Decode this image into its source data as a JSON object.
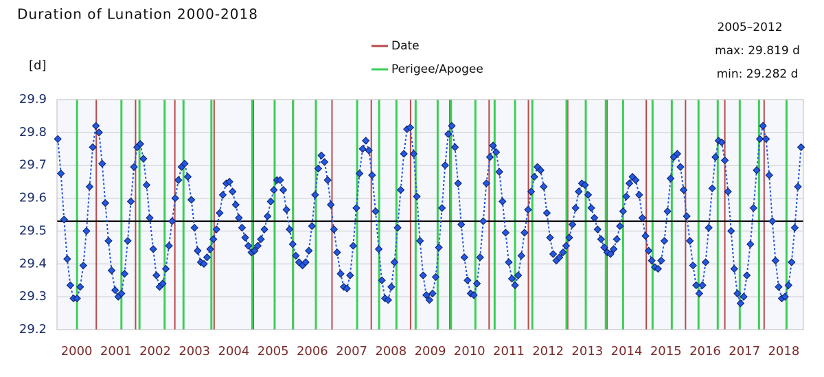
{
  "chart_data": {
    "type": "line",
    "title": "Duration of Lunation 2000-2018",
    "y_label": "[d]",
    "annotations": [
      "2005–2012",
      "max: 29.819 d",
      "min: 29.282 d"
    ],
    "xlim": [
      2000,
      2019
    ],
    "ylim": [
      29.2,
      29.9
    ],
    "yticks": [
      29.2,
      29.3,
      29.4,
      29.5,
      29.6,
      29.7,
      29.8,
      29.9
    ],
    "grid": true,
    "xticks": [
      {
        "value": 2000.5,
        "label": "2000"
      },
      {
        "value": 2001.5,
        "label": "2001"
      },
      {
        "value": 2002.5,
        "label": "2002"
      },
      {
        "value": 2003.5,
        "label": "2003"
      },
      {
        "value": 2004.5,
        "label": "2004"
      },
      {
        "value": 2005.5,
        "label": "2005"
      },
      {
        "value": 2006.5,
        "label": "2006"
      },
      {
        "value": 2007.5,
        "label": "2007"
      },
      {
        "value": 2008.5,
        "label": "2008"
      },
      {
        "value": 2009.5,
        "label": "2009"
      },
      {
        "value": 2010.5,
        "label": "2010"
      },
      {
        "value": 2011.5,
        "label": "2011"
      },
      {
        "value": 2012.5,
        "label": "2012"
      },
      {
        "value": 2013.5,
        "label": "2013"
      },
      {
        "value": 2014.5,
        "label": "2014"
      },
      {
        "value": 2015.5,
        "label": "2015"
      },
      {
        "value": 2016.5,
        "label": "2016"
      },
      {
        "value": 2017.5,
        "label": "2017"
      },
      {
        "value": 2018.5,
        "label": "2018"
      }
    ],
    "reference_line": {
      "value": 29.53,
      "color": "#000000"
    },
    "vlines": [
      {
        "name": "Date",
        "color": "#b84a4a",
        "x": [
          2001,
          2002,
          2003,
          2004,
          2005,
          2006,
          2007,
          2008,
          2009,
          2010,
          2011,
          2012,
          2013,
          2014,
          2015,
          2016,
          2017,
          2018
        ]
      },
      {
        "name": "Perigee/Apogee",
        "color": "#3ccf55",
        "x": [
          2000.51,
          2001.64,
          2002.1,
          2002.74,
          2003.22,
          2003.93,
          2004.97,
          2005.54,
          2006.01,
          2006.59,
          2007.64,
          2008.2,
          2008.64,
          2009.13,
          2009.69,
          2010.03,
          2010.65,
          2011.14,
          2011.66,
          2012.1,
          2012.97,
          2013.46,
          2013.97,
          2014.41,
          2015.16,
          2015.65,
          2016.33,
          2016.82,
          2017.38,
          2017.87,
          2018.57
        ]
      }
    ],
    "x": [
      2000.02,
      2000.1,
      2000.18,
      2000.26,
      2000.34,
      2000.42,
      2000.51,
      2000.59,
      2000.67,
      2000.75,
      2000.83,
      2000.91,
      2000.99,
      2001.07,
      2001.15,
      2001.23,
      2001.31,
      2001.39,
      2001.48,
      2001.56,
      2001.64,
      2001.72,
      2001.8,
      2001.88,
      2001.96,
      2002.04,
      2002.12,
      2002.2,
      2002.28,
      2002.36,
      2002.45,
      2002.53,
      2002.61,
      2002.69,
      2002.77,
      2002.85,
      2002.93,
      2003.01,
      2003.09,
      2003.17,
      2003.25,
      2003.33,
      2003.42,
      2003.5,
      2003.58,
      2003.66,
      2003.74,
      2003.82,
      2003.9,
      2003.98,
      2004.06,
      2004.14,
      2004.22,
      2004.31,
      2004.39,
      2004.47,
      2004.55,
      2004.63,
      2004.71,
      2004.79,
      2004.87,
      2004.95,
      2005.03,
      2005.11,
      2005.19,
      2005.28,
      2005.36,
      2005.44,
      2005.52,
      2005.6,
      2005.68,
      2005.76,
      2005.84,
      2005.92,
      2006.0,
      2006.08,
      2006.16,
      2006.25,
      2006.33,
      2006.41,
      2006.49,
      2006.57,
      2006.65,
      2006.73,
      2006.81,
      2006.89,
      2006.97,
      2007.05,
      2007.13,
      2007.22,
      2007.3,
      2007.38,
      2007.46,
      2007.54,
      2007.62,
      2007.7,
      2007.78,
      2007.86,
      2007.94,
      2008.02,
      2008.11,
      2008.19,
      2008.27,
      2008.35,
      2008.43,
      2008.51,
      2008.59,
      2008.67,
      2008.75,
      2008.83,
      2008.91,
      2008.99,
      2009.08,
      2009.16,
      2009.24,
      2009.32,
      2009.4,
      2009.48,
      2009.56,
      2009.64,
      2009.72,
      2009.8,
      2009.88,
      2009.96,
      2010.05,
      2010.13,
      2010.21,
      2010.29,
      2010.37,
      2010.45,
      2010.53,
      2010.61,
      2010.69,
      2010.77,
      2010.85,
      2010.93,
      2011.02,
      2011.1,
      2011.18,
      2011.26,
      2011.34,
      2011.42,
      2011.5,
      2011.58,
      2011.66,
      2011.74,
      2011.82,
      2011.9,
      2011.99,
      2012.07,
      2012.15,
      2012.23,
      2012.31,
      2012.39,
      2012.47,
      2012.55,
      2012.63,
      2012.71,
      2012.79,
      2012.88,
      2012.96,
      2013.04,
      2013.12,
      2013.2,
      2013.28,
      2013.36,
      2013.44,
      2013.52,
      2013.6,
      2013.68,
      2013.76,
      2013.85,
      2013.93,
      2014.01,
      2014.09,
      2014.17,
      2014.25,
      2014.33,
      2014.41,
      2014.49,
      2014.57,
      2014.65,
      2014.73,
      2014.82,
      2014.9,
      2014.98,
      2015.06,
      2015.14,
      2015.22,
      2015.3,
      2015.38,
      2015.46,
      2015.54,
      2015.62,
      2015.7,
      2015.79,
      2015.87,
      2015.95,
      2016.03,
      2016.11,
      2016.19,
      2016.27,
      2016.35,
      2016.43,
      2016.51,
      2016.59,
      2016.68,
      2016.76,
      2016.84,
      2016.92,
      2017.0,
      2017.08,
      2017.16,
      2017.24,
      2017.32,
      2017.4,
      2017.48,
      2017.56,
      2017.65,
      2017.73,
      2017.81,
      2017.89,
      2017.97,
      2018.05,
      2018.13,
      2018.21,
      2018.29,
      2018.37,
      2018.45,
      2018.53,
      2018.62,
      2018.7,
      2018.78,
      2018.86,
      2018.94
    ],
    "series": [
      {
        "color": "#2458e0",
        "values": [
          29.78,
          29.675,
          29.535,
          29.415,
          29.335,
          29.295,
          29.295,
          29.33,
          29.395,
          29.5,
          29.635,
          29.755,
          29.82,
          29.8,
          29.705,
          29.585,
          29.47,
          29.38,
          29.32,
          29.3,
          29.31,
          29.37,
          29.47,
          29.59,
          29.695,
          29.755,
          29.765,
          29.72,
          29.64,
          29.54,
          29.445,
          29.365,
          29.33,
          29.34,
          29.385,
          29.455,
          29.53,
          29.6,
          29.655,
          29.695,
          29.705,
          29.665,
          29.595,
          29.51,
          29.44,
          29.405,
          29.4,
          29.42,
          29.445,
          29.475,
          29.505,
          29.555,
          29.61,
          29.645,
          29.65,
          29.62,
          29.58,
          29.54,
          29.51,
          29.48,
          29.455,
          29.435,
          29.44,
          29.455,
          29.475,
          29.505,
          29.545,
          29.59,
          29.625,
          29.655,
          29.655,
          29.625,
          29.565,
          29.505,
          29.46,
          29.425,
          29.405,
          29.395,
          29.405,
          29.44,
          29.515,
          29.61,
          29.69,
          29.73,
          29.71,
          29.655,
          29.58,
          29.505,
          29.435,
          29.37,
          29.33,
          29.325,
          29.365,
          29.455,
          29.57,
          29.675,
          29.75,
          29.775,
          29.745,
          29.67,
          29.56,
          29.445,
          29.35,
          29.295,
          29.29,
          29.33,
          29.405,
          29.51,
          29.625,
          29.735,
          29.81,
          29.815,
          29.735,
          29.605,
          29.47,
          29.365,
          29.305,
          29.29,
          29.31,
          29.36,
          29.45,
          29.57,
          29.7,
          29.795,
          29.82,
          29.755,
          29.645,
          29.52,
          29.42,
          29.35,
          29.31,
          29.305,
          29.34,
          29.42,
          29.53,
          29.645,
          29.725,
          29.76,
          29.74,
          29.68,
          29.59,
          29.495,
          29.405,
          29.355,
          29.335,
          29.365,
          29.425,
          29.495,
          29.565,
          29.62,
          29.665,
          29.695,
          29.685,
          29.635,
          29.555,
          29.48,
          29.43,
          29.41,
          29.42,
          29.435,
          29.455,
          29.48,
          29.52,
          29.57,
          29.62,
          29.645,
          29.64,
          29.61,
          29.57,
          29.54,
          29.505,
          29.475,
          29.45,
          29.435,
          29.43,
          29.445,
          29.475,
          29.515,
          29.56,
          29.605,
          29.645,
          29.665,
          29.655,
          29.61,
          29.54,
          29.485,
          29.44,
          29.41,
          29.39,
          29.385,
          29.41,
          29.47,
          29.56,
          29.66,
          29.725,
          29.735,
          29.695,
          29.625,
          29.545,
          29.47,
          29.395,
          29.335,
          29.31,
          29.335,
          29.405,
          29.51,
          29.63,
          29.725,
          29.775,
          29.77,
          29.715,
          29.62,
          29.5,
          29.385,
          29.31,
          29.28,
          29.3,
          29.365,
          29.46,
          29.57,
          29.685,
          29.78,
          29.82,
          29.78,
          29.67,
          29.53,
          29.41,
          29.33,
          29.295,
          29.3,
          29.335,
          29.405,
          29.51,
          29.635,
          29.755
        ]
      }
    ]
  }
}
